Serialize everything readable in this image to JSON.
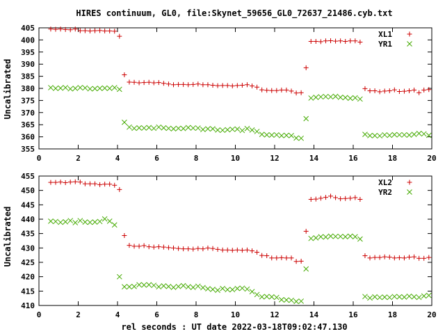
{
  "chart_data": {
    "title": "HIRES continuum, GL0, file:Skynet_59656_GL0_72637_21486.cyb.txt",
    "xlabel": "rel seconds : UT date 2022-03-18T09:02:47.130",
    "colors": {
      "X": "#cc0000",
      "Y": "#44aa00"
    },
    "panels": [
      {
        "type": "scatter",
        "ylabel": "Uncalibrated",
        "xlim": [
          0,
          20
        ],
        "ylim": [
          355,
          405
        ],
        "xticks": [
          0,
          2,
          4,
          6,
          8,
          10,
          12,
          14,
          16,
          18,
          20
        ],
        "yticks": [
          355,
          360,
          365,
          370,
          375,
          380,
          385,
          390,
          395,
          400,
          405
        ],
        "legend_position": "top-right",
        "series": [
          {
            "name": "XL1",
            "marker": "plus",
            "x": [
              0.6,
              0.85,
              1.1,
              1.35,
              1.6,
              1.85,
              2.1,
              2.35,
              2.6,
              2.85,
              3.1,
              3.35,
              3.6,
              3.85,
              4.1,
              4.35,
              4.6,
              4.85,
              5.1,
              5.35,
              5.6,
              5.85,
              6.1,
              6.35,
              6.6,
              6.85,
              7.1,
              7.35,
              7.6,
              7.85,
              8.1,
              8.35,
              8.6,
              8.85,
              9.1,
              9.35,
              9.6,
              9.85,
              10.1,
              10.35,
              10.6,
              10.85,
              11.1,
              11.35,
              11.6,
              11.85,
              12.1,
              12.35,
              12.6,
              12.85,
              13.1,
              13.35,
              13.6,
              13.85,
              14.1,
              14.35,
              14.6,
              14.85,
              15.1,
              15.35,
              15.6,
              15.85,
              16.1,
              16.35,
              16.6,
              16.85,
              17.1,
              17.35,
              17.6,
              17.85,
              18.1,
              18.35,
              18.6,
              18.85,
              19.1,
              19.35,
              19.6,
              19.85
            ],
            "y": [
              404.5,
              404.4,
              404.5,
              404.3,
              404.2,
              404.5,
              403.8,
              403.8,
              403.7,
              403.8,
              403.9,
              403.7,
              403.7,
              403.6,
              401.5,
              385.6,
              382.6,
              382.5,
              382.3,
              382.4,
              382.5,
              382.3,
              382.4,
              382.1,
              381.8,
              381.5,
              381.6,
              381.6,
              381.5,
              381.6,
              381.8,
              381.5,
              381.5,
              381.3,
              381.1,
              381.2,
              381.2,
              381.0,
              381.2,
              381.3,
              381.5,
              381.0,
              380.5,
              379.4,
              379.2,
              379.1,
              379.1,
              379.3,
              379.3,
              378.9,
              378.1,
              378.2,
              388.5,
              399.4,
              399.4,
              399.3,
              399.6,
              399.7,
              399.5,
              399.6,
              399.4,
              399.6,
              399.6,
              399.1,
              379.9,
              379.0,
              379.0,
              378.6,
              378.9,
              379.0,
              379.4,
              378.7,
              378.8,
              379.0,
              379.3,
              378.2,
              379.3,
              379.5
            ]
          },
          {
            "name": "YR1",
            "marker": "cross",
            "x": [
              0.6,
              0.85,
              1.1,
              1.35,
              1.6,
              1.85,
              2.1,
              2.35,
              2.6,
              2.85,
              3.1,
              3.35,
              3.6,
              3.85,
              4.1,
              4.35,
              4.6,
              4.85,
              5.1,
              5.35,
              5.6,
              5.85,
              6.1,
              6.35,
              6.6,
              6.85,
              7.1,
              7.35,
              7.6,
              7.85,
              8.1,
              8.35,
              8.6,
              8.85,
              9.1,
              9.35,
              9.6,
              9.85,
              10.1,
              10.35,
              10.6,
              10.85,
              11.1,
              11.35,
              11.6,
              11.85,
              12.1,
              12.35,
              12.6,
              12.85,
              13.1,
              13.35,
              13.6,
              13.85,
              14.1,
              14.35,
              14.6,
              14.85,
              15.1,
              15.35,
              15.6,
              15.85,
              16.1,
              16.35,
              16.6,
              16.85,
              17.1,
              17.35,
              17.6,
              17.85,
              18.1,
              18.35,
              18.6,
              18.85,
              19.1,
              19.35,
              19.6,
              19.85
            ],
            "y": [
              380.3,
              380.0,
              380.1,
              380.3,
              379.8,
              380.0,
              380.3,
              380.2,
              379.8,
              379.9,
              380.0,
              380.1,
              380.0,
              380.3,
              379.6,
              366.0,
              364.0,
              363.5,
              363.7,
              363.6,
              363.8,
              363.5,
              364.0,
              363.7,
              363.5,
              363.3,
              363.5,
              363.4,
              363.8,
              363.6,
              363.6,
              363.0,
              363.3,
              363.3,
              362.8,
              362.7,
              362.9,
              363.1,
              363.2,
              362.6,
              363.4,
              362.8,
              362.2,
              361.0,
              360.8,
              360.7,
              360.8,
              360.5,
              360.6,
              360.5,
              359.5,
              359.4,
              367.5,
              376.0,
              376.3,
              376.5,
              376.6,
              376.5,
              376.7,
              376.3,
              376.2,
              375.9,
              376.1,
              375.6,
              361.0,
              360.5,
              360.5,
              360.4,
              360.8,
              360.6,
              360.9,
              360.8,
              360.8,
              360.7,
              361.0,
              361.4,
              361.2,
              360.6
            ]
          }
        ]
      },
      {
        "type": "scatter",
        "ylabel": "Uncalibrated",
        "xlim": [
          0,
          20
        ],
        "ylim": [
          410,
          455
        ],
        "xticks": [
          0,
          2,
          4,
          6,
          8,
          10,
          12,
          14,
          16,
          18,
          20
        ],
        "yticks": [
          410,
          415,
          420,
          425,
          430,
          435,
          440,
          445,
          450,
          455
        ],
        "legend_position": "top-right",
        "series": [
          {
            "name": "XL2",
            "marker": "plus",
            "x": [
              0.6,
              0.85,
              1.1,
              1.35,
              1.6,
              1.85,
              2.1,
              2.35,
              2.6,
              2.85,
              3.1,
              3.35,
              3.6,
              3.85,
              4.1,
              4.35,
              4.6,
              4.85,
              5.1,
              5.35,
              5.6,
              5.85,
              6.1,
              6.35,
              6.6,
              6.85,
              7.1,
              7.35,
              7.6,
              7.85,
              8.1,
              8.35,
              8.6,
              8.85,
              9.1,
              9.35,
              9.6,
              9.85,
              10.1,
              10.35,
              10.6,
              10.85,
              11.1,
              11.35,
              11.6,
              11.85,
              12.1,
              12.35,
              12.6,
              12.85,
              13.1,
              13.35,
              13.6,
              13.85,
              14.1,
              14.35,
              14.6,
              14.85,
              15.1,
              15.35,
              15.6,
              15.85,
              16.1,
              16.35,
              16.6,
              16.85,
              17.1,
              17.35,
              17.6,
              17.85,
              18.1,
              18.35,
              18.6,
              18.85,
              19.1,
              19.35,
              19.6,
              19.85
            ],
            "y": [
              452.8,
              452.8,
              452.9,
              452.7,
              452.9,
              453.0,
              452.9,
              452.3,
              452.3,
              452.3,
              452.0,
              452.2,
              452.2,
              451.8,
              450.3,
              434.3,
              430.9,
              430.6,
              430.6,
              430.8,
              430.4,
              430.3,
              430.4,
              430.3,
              430.1,
              430.0,
              429.8,
              429.7,
              429.7,
              429.6,
              429.8,
              429.7,
              430.0,
              429.8,
              429.5,
              429.3,
              429.3,
              429.2,
              429.3,
              429.2,
              429.3,
              429.0,
              428.5,
              427.4,
              427.3,
              426.5,
              426.5,
              426.6,
              426.5,
              426.5,
              425.3,
              425.4,
              435.8,
              446.9,
              447.0,
              447.3,
              447.6,
              448.0,
              447.5,
              447.1,
              447.2,
              447.3,
              447.5,
              446.9,
              427.3,
              426.5,
              426.7,
              426.7,
              426.9,
              426.8,
              426.5,
              426.6,
              426.5,
              426.8,
              426.9,
              426.4,
              426.4,
              426.7
            ]
          },
          {
            "name": "YR2",
            "marker": "cross",
            "x": [
              0.6,
              0.85,
              1.1,
              1.35,
              1.6,
              1.85,
              2.1,
              2.35,
              2.6,
              2.85,
              3.1,
              3.35,
              3.6,
              3.85,
              4.1,
              4.35,
              4.6,
              4.85,
              5.1,
              5.35,
              5.6,
              5.85,
              6.1,
              6.35,
              6.6,
              6.85,
              7.1,
              7.35,
              7.6,
              7.85,
              8.1,
              8.35,
              8.6,
              8.85,
              9.1,
              9.35,
              9.6,
              9.85,
              10.1,
              10.35,
              10.6,
              10.85,
              11.1,
              11.35,
              11.6,
              11.85,
              12.1,
              12.35,
              12.6,
              12.85,
              13.1,
              13.35,
              13.6,
              13.85,
              14.1,
              14.35,
              14.6,
              14.85,
              15.1,
              15.35,
              15.6,
              15.85,
              16.1,
              16.35,
              16.6,
              16.85,
              17.1,
              17.35,
              17.6,
              17.85,
              18.1,
              18.35,
              18.6,
              18.85,
              19.1,
              19.35,
              19.6,
              19.85
            ],
            "y": [
              439.3,
              439.2,
              438.9,
              439.1,
              439.5,
              438.8,
              439.5,
              439.0,
              438.9,
              439.0,
              439.2,
              440.1,
              439.3,
              438.0,
              420.0,
              416.5,
              416.5,
              416.6,
              417.2,
              417.1,
              417.2,
              417.0,
              416.5,
              416.8,
              416.6,
              416.3,
              416.6,
              416.9,
              416.5,
              416.3,
              416.7,
              416.2,
              415.8,
              415.6,
              415.3,
              415.9,
              415.5,
              415.5,
              415.9,
              416.0,
              415.7,
              414.8,
              413.8,
              413.0,
              413.1,
              413.0,
              412.8,
              412.0,
              411.9,
              411.8,
              411.4,
              411.5,
              422.7,
              433.3,
              433.5,
              433.9,
              433.8,
              434.1,
              434.0,
              434.0,
              433.9,
              434.1,
              433.9,
              433.1,
              413.1,
              412.6,
              413.0,
              412.8,
              412.9,
              412.8,
              413.1,
              413.0,
              412.9,
              413.2,
              413.0,
              412.8,
              413.3,
              413.5
            ]
          }
        ]
      }
    ]
  }
}
